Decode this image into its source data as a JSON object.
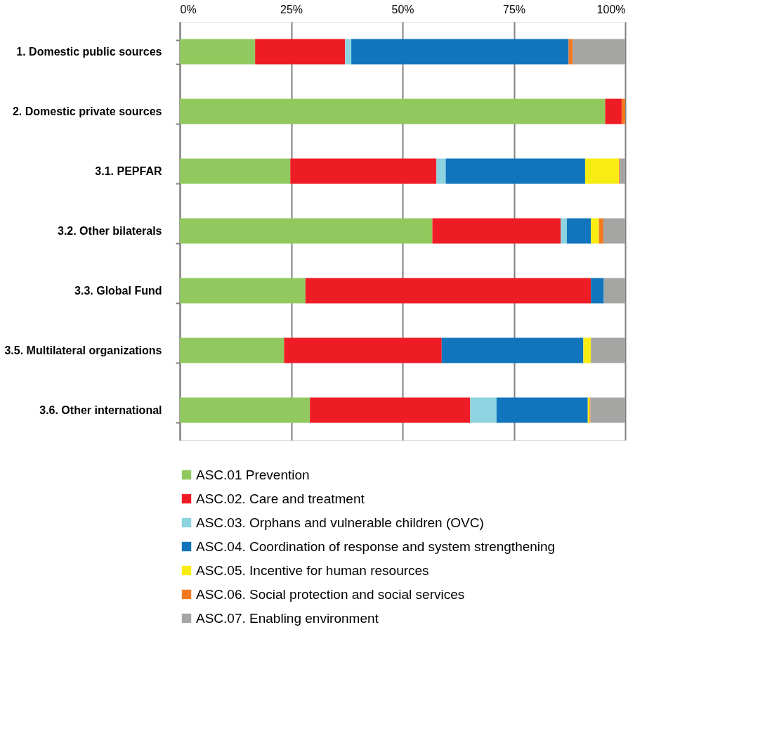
{
  "chart_data": {
    "type": "bar",
    "orientation": "horizontal",
    "stacked": true,
    "categories": [
      "1. Domestic public sources",
      "2. Domestic private sources",
      "3.1. PEPFAR",
      "3.2. Other bilaterals",
      "3.3. Global Fund",
      "3.5. Multilateral organizations",
      "3.6. Other international"
    ],
    "series": [
      {
        "name": "ASC.01 Prevention",
        "color": "#92c95f",
        "values": [
          16.9,
          95.5,
          24.8,
          56.7,
          28.2,
          23.4,
          29.2
        ]
      },
      {
        "name": "ASC.02. Care and treatment",
        "color": "#ee1c25",
        "values": [
          20.2,
          3.7,
          32.8,
          28.8,
          64.1,
          35.4,
          36.0
        ]
      },
      {
        "name": "ASC.03. Orphans and vulnerable children (OVC)",
        "color": "#8dd3e0",
        "values": [
          1.4,
          null,
          2.1,
          1.4,
          null,
          null,
          5.9
        ]
      },
      {
        "name": "ASC.04. Coordination of response and system strengthening",
        "color": "#1075bd",
        "values": [
          48.8,
          null,
          31.3,
          5.4,
          2.9,
          31.8,
          20.5
        ]
      },
      {
        "name": "ASC.05. Incentive for human resources",
        "color": "#f8ec13",
        "values": [
          null,
          null,
          7.6,
          1.8,
          null,
          1.7,
          0.4
        ]
      },
      {
        "name": "ASC.06. Social protection and social services",
        "color": "#f47a20",
        "values": [
          0.9,
          0.8,
          0.2,
          1.0,
          null,
          null,
          0.2
        ]
      },
      {
        "name": "ASC.07. Enabling environment",
        "color": "#a5a6a4",
        "values": [
          11.8,
          null,
          1.2,
          4.9,
          4.8,
          7.7,
          7.8
        ]
      }
    ],
    "xlim": [
      0,
      100
    ],
    "xticks": [
      {
        "value": 0,
        "label": "0%"
      },
      {
        "value": 25,
        "label": "25%"
      },
      {
        "value": 50,
        "label": "50%"
      },
      {
        "value": 75,
        "label": "75%"
      },
      {
        "value": 100,
        "label": "100%"
      }
    ],
    "grid": "x",
    "legend": "bottom"
  }
}
